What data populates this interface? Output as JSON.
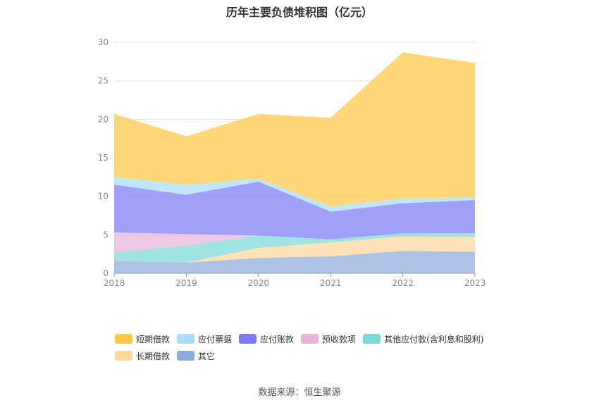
{
  "chart_data": {
    "type": "area",
    "stacked": true,
    "title": "历年主要负债堆积图（亿元）",
    "x": [
      "2018",
      "2019",
      "2020",
      "2021",
      "2022",
      "2023"
    ],
    "ylim": [
      0,
      30
    ],
    "yticks": [
      0,
      5,
      10,
      15,
      20,
      25,
      30
    ],
    "grid": true,
    "legend_position": "bottom",
    "series": [
      {
        "name": "其它",
        "color": "#8faadc",
        "values": [
          1.6,
          1.4,
          2.0,
          2.2,
          2.9,
          2.8
        ]
      },
      {
        "name": "长期借款",
        "color": "#ffd89a",
        "values": [
          0.0,
          0.0,
          1.3,
          1.8,
          1.9,
          1.9
        ]
      },
      {
        "name": "其他应付款(含利息和股利)",
        "color": "#7dd8d8",
        "values": [
          1.1,
          2.2,
          1.6,
          0.4,
          0.4,
          0.5
        ]
      },
      {
        "name": "预收款项",
        "color": "#e8b4d8",
        "values": [
          2.6,
          1.5,
          0.0,
          0.0,
          0.0,
          0.0
        ]
      },
      {
        "name": "应付账款",
        "color": "#7b7cf5",
        "values": [
          6.2,
          5.1,
          7.0,
          3.6,
          3.9,
          4.3
        ]
      },
      {
        "name": "应付票据",
        "color": "#a8dcf8",
        "values": [
          1.0,
          1.3,
          0.4,
          0.7,
          0.6,
          0.4
        ]
      },
      {
        "name": "短期借款",
        "color": "#ffc845",
        "values": [
          8.2,
          6.3,
          8.4,
          11.5,
          19.0,
          17.4
        ]
      }
    ],
    "legend_order": [
      "短期借款",
      "应付票据",
      "应付账款",
      "预收款项",
      "其他应付款(含利息和股利)",
      "长期借款",
      "其它"
    ]
  },
  "source_text": "数据来源：恒生聚源"
}
